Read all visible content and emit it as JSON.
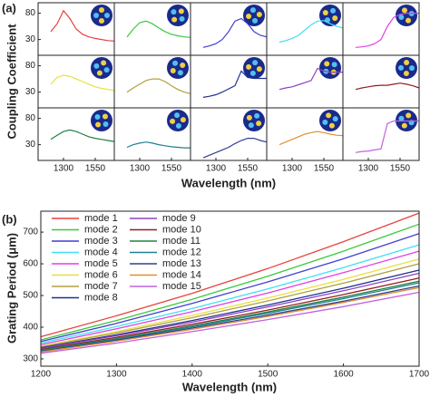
{
  "panel_a": {
    "label": "(a)",
    "ylabel": "Coupling Coefficient",
    "xlabel": "Wavelength (nm)"
  },
  "chart_data": [
    {
      "type": "line",
      "x": [
        1200,
        1250,
        1300,
        1350,
        1400,
        1450,
        1500,
        1550,
        1600,
        1650,
        1700
      ],
      "values": [
        45,
        60,
        85,
        70,
        50,
        40,
        35,
        32,
        30,
        28,
        27
      ],
      "color": "#e8413c",
      "xlim": [
        1100,
        1700
      ],
      "ylim": [
        0,
        100
      ],
      "yticks": [
        30,
        80
      ]
    },
    {
      "type": "line",
      "x": [
        1200,
        1250,
        1300,
        1350,
        1400,
        1450,
        1500,
        1550,
        1600,
        1650,
        1700
      ],
      "values": [
        35,
        50,
        62,
        65,
        60,
        52,
        45,
        40,
        37,
        35,
        34
      ],
      "color": "#3cc83c",
      "xlim": [
        1100,
        1700
      ],
      "ylim": [
        0,
        100
      ]
    },
    {
      "type": "line",
      "x": [
        1200,
        1250,
        1300,
        1350,
        1400,
        1450,
        1500,
        1550,
        1600,
        1650,
        1700
      ],
      "values": [
        15,
        18,
        22,
        30,
        45,
        65,
        70,
        60,
        45,
        38,
        35
      ],
      "color": "#4040d0",
      "xlim": [
        1100,
        1700
      ],
      "ylim": [
        0,
        100
      ]
    },
    {
      "type": "line",
      "x": [
        1200,
        1250,
        1300,
        1350,
        1400,
        1450,
        1500,
        1550,
        1600,
        1650,
        1700
      ],
      "values": [
        25,
        28,
        32,
        38,
        48,
        58,
        65,
        66,
        60,
        55,
        52
      ],
      "color": "#40e0f0",
      "xlim": [
        1100,
        1700
      ],
      "ylim": [
        0,
        100
      ]
    },
    {
      "type": "line",
      "x": [
        1200,
        1250,
        1300,
        1350,
        1400,
        1450,
        1500,
        1550,
        1600,
        1650,
        1700
      ],
      "values": [
        15,
        16,
        18,
        22,
        30,
        55,
        72,
        78,
        80,
        80,
        80
      ],
      "color": "#e040e0",
      "xlim": [
        1100,
        1700
      ],
      "ylim": [
        0,
        100
      ]
    },
    {
      "type": "line",
      "x": [
        1200,
        1250,
        1300,
        1350,
        1400,
        1450,
        1500,
        1550,
        1600,
        1650,
        1700
      ],
      "values": [
        45,
        58,
        62,
        60,
        55,
        50,
        45,
        40,
        37,
        35,
        33
      ],
      "color": "#e8e040",
      "xlim": [
        1100,
        1700
      ],
      "ylim": [
        0,
        100
      ],
      "yticks": [
        30,
        80
      ]
    },
    {
      "type": "line",
      "x": [
        1200,
        1250,
        1300,
        1350,
        1400,
        1450,
        1500,
        1550,
        1600,
        1650,
        1700
      ],
      "values": [
        30,
        38,
        45,
        52,
        55,
        55,
        50,
        42,
        35,
        30,
        27
      ],
      "color": "#b0a040",
      "xlim": [
        1100,
        1700
      ],
      "ylim": [
        0,
        100
      ]
    },
    {
      "type": "line",
      "x": [
        1200,
        1250,
        1300,
        1350,
        1400,
        1450,
        1500,
        1550,
        1600,
        1650,
        1700
      ],
      "values": [
        20,
        22,
        25,
        30,
        36,
        42,
        70,
        58,
        56,
        56,
        56
      ],
      "color": "#203090",
      "xlim": [
        1100,
        1700
      ],
      "ylim": [
        0,
        100
      ]
    },
    {
      "type": "line",
      "x": [
        1200,
        1250,
        1300,
        1350,
        1400,
        1450,
        1500,
        1550,
        1600,
        1650,
        1700
      ],
      "values": [
        35,
        38,
        40,
        44,
        48,
        52,
        75,
        70,
        68,
        68,
        68
      ],
      "color": "#9040c0",
      "xlim": [
        1100,
        1700
      ],
      "ylim": [
        0,
        100
      ]
    },
    {
      "type": "line",
      "x": [
        1200,
        1250,
        1300,
        1350,
        1400,
        1450,
        1500,
        1550,
        1600,
        1650,
        1700
      ],
      "values": [
        35,
        38,
        40,
        42,
        43,
        43,
        45,
        47,
        45,
        42,
        38
      ],
      "color": "#902020",
      "xlim": [
        1100,
        1700
      ],
      "ylim": [
        0,
        100
      ]
    },
    {
      "type": "line",
      "x": [
        1200,
        1250,
        1300,
        1350,
        1400,
        1450,
        1500,
        1550,
        1600,
        1650,
        1700
      ],
      "values": [
        40,
        48,
        55,
        58,
        55,
        50,
        45,
        42,
        40,
        38,
        36
      ],
      "color": "#208040",
      "xlim": [
        1100,
        1700
      ],
      "ylim": [
        0,
        100
      ],
      "yticks": [
        30,
        80
      ],
      "xticks": [
        1300,
        1550
      ]
    },
    {
      "type": "line",
      "x": [
        1200,
        1250,
        1300,
        1350,
        1400,
        1450,
        1500,
        1550,
        1600,
        1650,
        1700
      ],
      "values": [
        25,
        30,
        33,
        35,
        33,
        30,
        28,
        26,
        25,
        24,
        24
      ],
      "color": "#208090",
      "xlim": [
        1100,
        1700
      ],
      "ylim": [
        0,
        100
      ],
      "xticks": [
        1300,
        1550
      ]
    },
    {
      "type": "line",
      "x": [
        1200,
        1250,
        1300,
        1350,
        1400,
        1450,
        1500,
        1550,
        1600,
        1650,
        1700
      ],
      "values": [
        5,
        10,
        15,
        20,
        25,
        32,
        38,
        42,
        42,
        38,
        35
      ],
      "color": "#304090",
      "xlim": [
        1100,
        1700
      ],
      "ylim": [
        0,
        100
      ],
      "xticks": [
        1300,
        1550
      ]
    },
    {
      "type": "line",
      "x": [
        1200,
        1250,
        1300,
        1350,
        1400,
        1450,
        1500,
        1550,
        1600,
        1650,
        1700
      ],
      "values": [
        30,
        35,
        40,
        45,
        50,
        53,
        55,
        53,
        50,
        48,
        47
      ],
      "color": "#e09030",
      "xlim": [
        1100,
        1700
      ],
      "ylim": [
        0,
        100
      ],
      "xticks": [
        1300,
        1550
      ]
    },
    {
      "type": "line",
      "x": [
        1200,
        1250,
        1300,
        1350,
        1400,
        1450,
        1500,
        1550,
        1600,
        1650,
        1700
      ],
      "values": [
        15,
        17,
        18,
        20,
        22,
        70,
        75,
        75,
        75,
        75,
        75
      ],
      "color": "#c060e0",
      "xlim": [
        1100,
        1700
      ],
      "ylim": [
        0,
        100
      ],
      "xticks": [
        1300,
        1550
      ]
    },
    {
      "type": "line",
      "label": "(b)",
      "xlabel": "Wavelength (nm)",
      "ylabel": "Grating Period (μm)",
      "x": [
        1200,
        1300,
        1400,
        1500,
        1600,
        1700
      ],
      "xlim": [
        1200,
        1700
      ],
      "ylim": [
        277,
        766
      ],
      "xticks": [
        1200,
        1300,
        1400,
        1500,
        1600,
        1700
      ],
      "yticks": [
        300,
        400,
        500,
        600,
        700
      ],
      "legend": "upper left",
      "series": [
        {
          "name": "mode 1",
          "color": "#e8413c",
          "values": [
            370,
            436,
            507,
            585,
            670,
            760
          ]
        },
        {
          "name": "mode 2",
          "color": "#3cc83c",
          "values": [
            360,
            421,
            488,
            561,
            640,
            725
          ]
        },
        {
          "name": "mode 3",
          "color": "#4040d0",
          "values": [
            355,
            412,
            475,
            543,
            616,
            695
          ]
        },
        {
          "name": "mode 4",
          "color": "#40e0f0",
          "values": [
            350,
            402,
            459,
            521,
            588,
            660
          ]
        },
        {
          "name": "mode 5",
          "color": "#e040e0",
          "values": [
            345,
            395,
            449,
            508,
            572,
            640
          ]
        },
        {
          "name": "mode 6",
          "color": "#e8e040",
          "values": [
            340,
            386,
            437,
            492,
            551,
            615
          ]
        },
        {
          "name": "mode 7",
          "color": "#b0a040",
          "values": [
            338,
            382,
            430,
            483,
            539,
            600
          ]
        },
        {
          "name": "mode 8",
          "color": "#203090",
          "values": [
            335,
            376,
            421,
            470,
            523,
            580
          ]
        },
        {
          "name": "mode 9",
          "color": "#9040c0",
          "values": [
            333,
            373,
            416,
            464,
            515,
            570
          ]
        },
        {
          "name": "mode 10",
          "color": "#902020",
          "values": [
            330,
            368,
            409,
            454,
            503,
            555
          ]
        },
        {
          "name": "mode 11",
          "color": "#208040",
          "values": [
            328,
            364,
            404,
            448,
            495,
            545
          ]
        },
        {
          "name": "mode 12",
          "color": "#208090",
          "values": [
            326,
            362,
            401,
            444,
            490,
            540
          ]
        },
        {
          "name": "mode 13",
          "color": "#304090",
          "values": [
            324,
            359,
            397,
            438,
            482,
            530
          ]
        },
        {
          "name": "mode 14",
          "color": "#e09030",
          "values": [
            322,
            356,
            393,
            434,
            478,
            525
          ]
        },
        {
          "name": "mode 15",
          "color": "#c060e0",
          "values": [
            318,
            350,
            386,
            424,
            465,
            510
          ]
        }
      ]
    }
  ]
}
